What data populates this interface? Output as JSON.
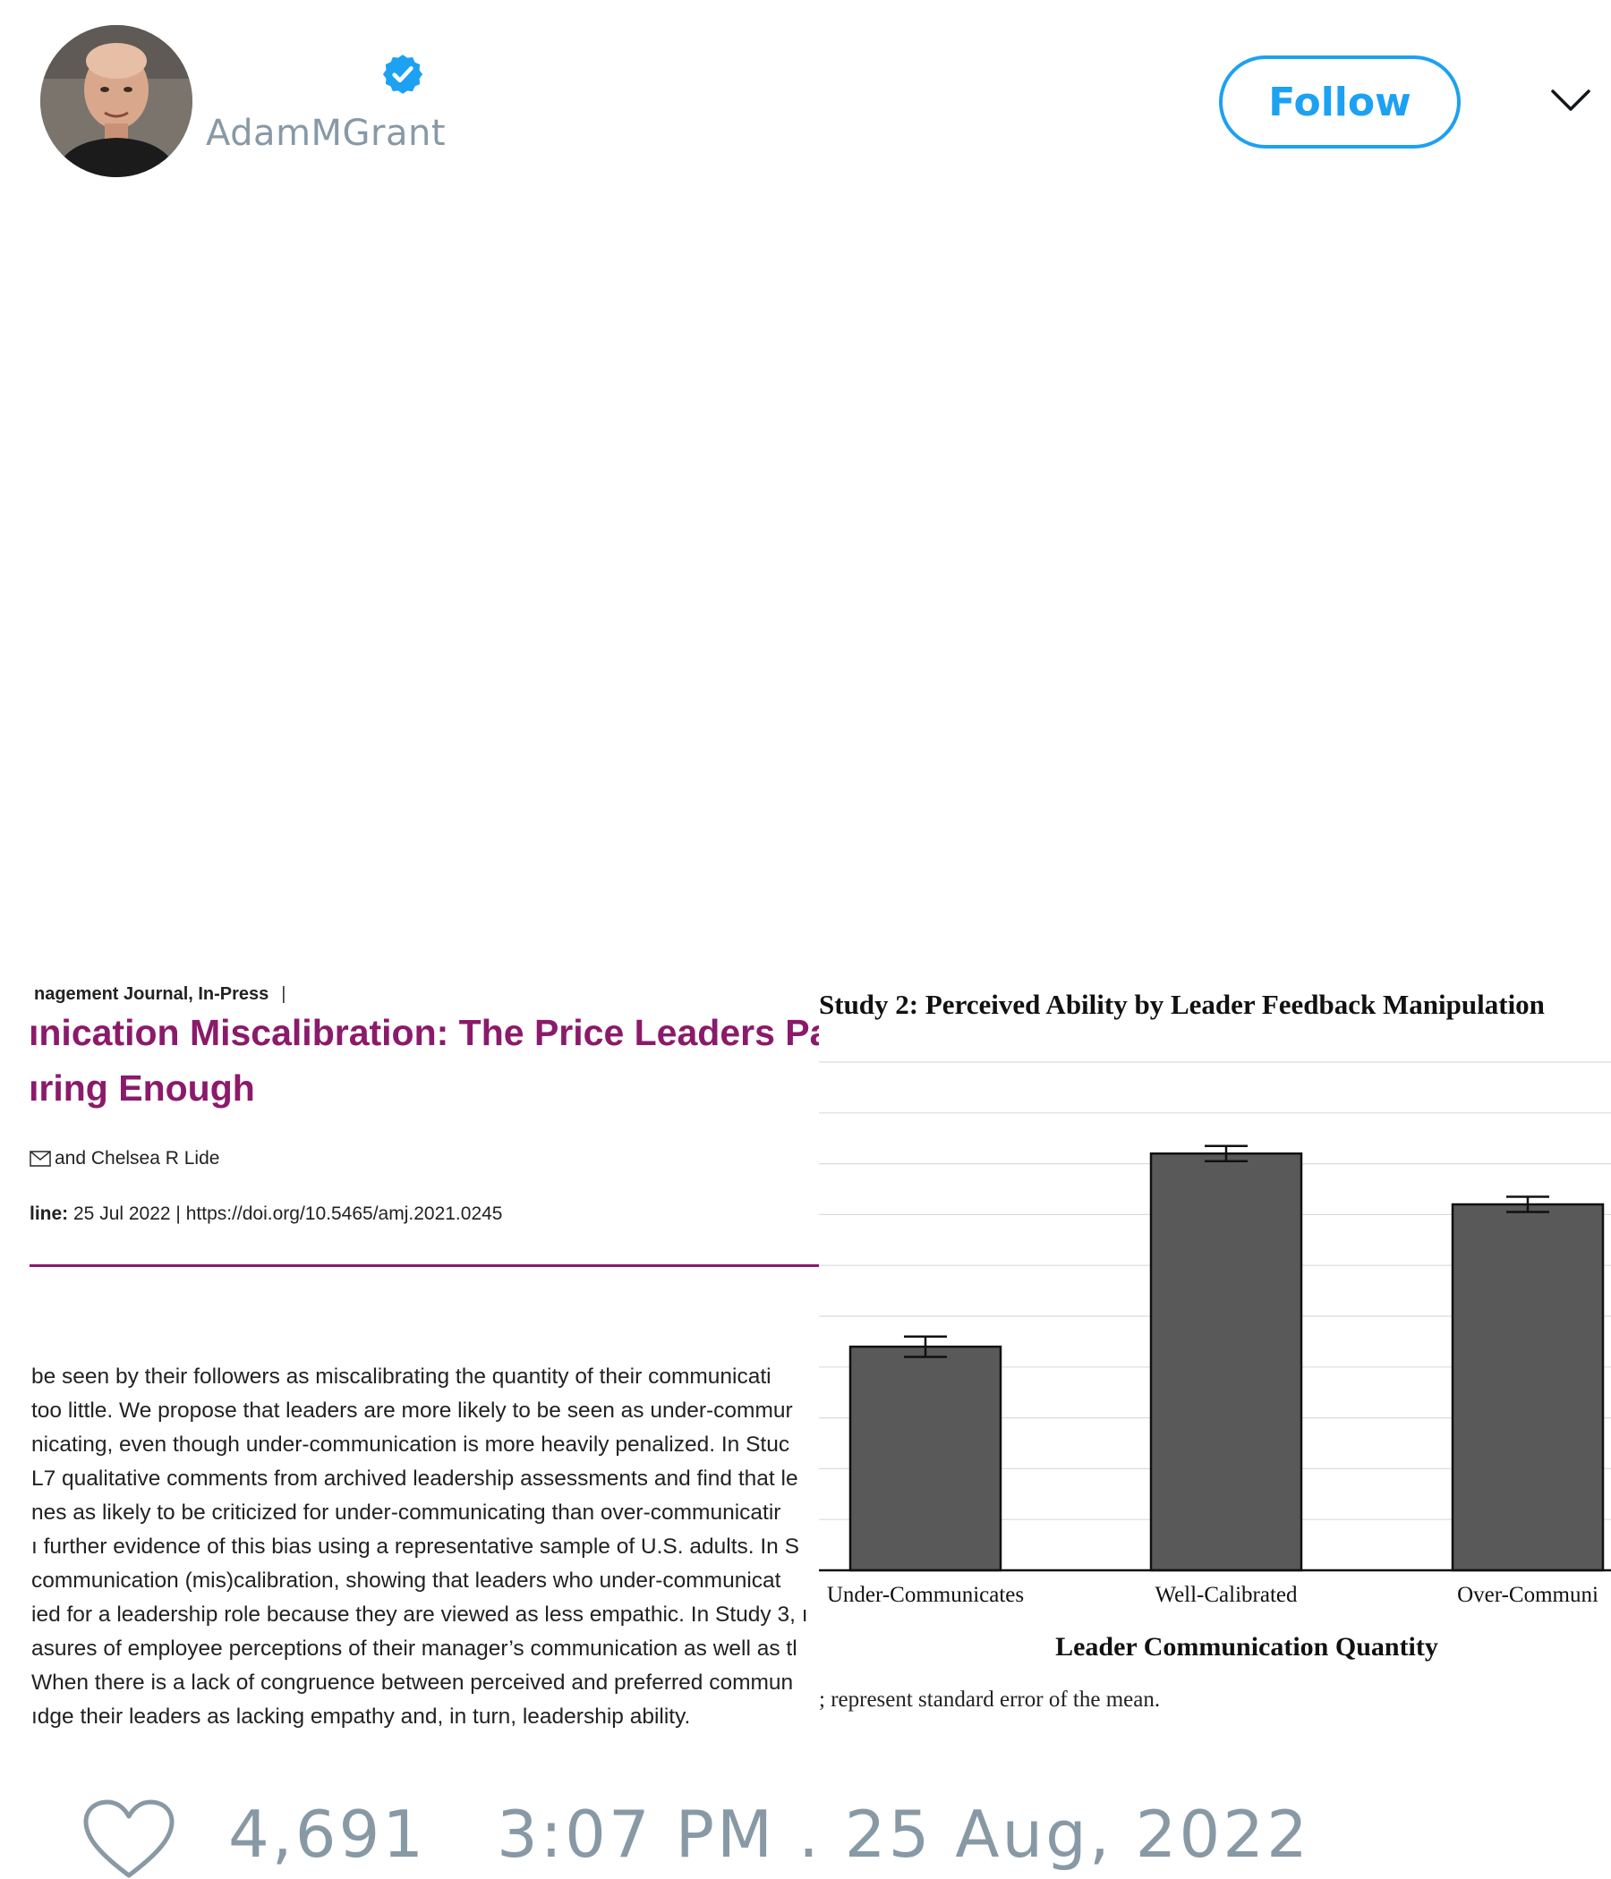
{
  "header": {
    "display_name": "",
    "handle": "AdamMGrant",
    "verified": true,
    "follow_label": "Follow",
    "avatar_icon": "user-avatar",
    "accent_color": "#1da1f2"
  },
  "paper": {
    "journal": "nagement Journal,  In-Press",
    "journal_sep": "|",
    "title_lines": [
      "ınication Miscalibration: The Price Leaders Pay",
      "ıring Enough"
    ],
    "authors": "and Chelsea R Lide",
    "published_label": "line:",
    "published_value": " 25 Jul 2022 | https://doi.org/10.5465/amj.2021.0245",
    "abstract_lines": [
      " be seen by their followers as miscalibrating the quantity of their communicati",
      "too little. We propose that leaders are more likely to be seen as under-commur",
      "nicating, even though under-communication is more heavily penalized. In Stuc",
      "L7 qualitative comments from archived leadership assessments and find that le",
      "nes as likely to be criticized for under-communicating than over-communicatir",
      "ı further evidence of this bias using a representative sample of U.S. adults. In S",
      "communication (mis)calibration, showing that leaders who under-communicat",
      "ied for a leadership role because they are viewed as less empathic. In Study 3, ı",
      "asures of employee perceptions of their manager’s communication as well as tl",
      " When there is a lack of congruence between perceived and preferred commun",
      "ıdge their leaders as lacking empathy and, in turn, leadership ability."
    ],
    "title_color": "#8b1a6b"
  },
  "chart_data": {
    "type": "bar",
    "title": "Study 2: Perceived Ability by Leader Feedback Manipulation",
    "categories": [
      "Under-Communicates",
      "Well-Calibrated",
      "Over-Communi"
    ],
    "values": [
      4.4,
      8.2,
      7.2
    ],
    "errors": [
      0.2,
      0.15,
      0.15
    ],
    "ylim": [
      0,
      10
    ],
    "xlabel": "Leader Communication Quantity",
    "ylabel": "",
    "grid": true,
    "caption": "; represent standard error of the mean.",
    "bar_color": "#595959"
  },
  "footer": {
    "likes": "4,691",
    "timestamp": "3:07 PM . 25 Aug, 2022",
    "like_icon": "heart-icon"
  }
}
